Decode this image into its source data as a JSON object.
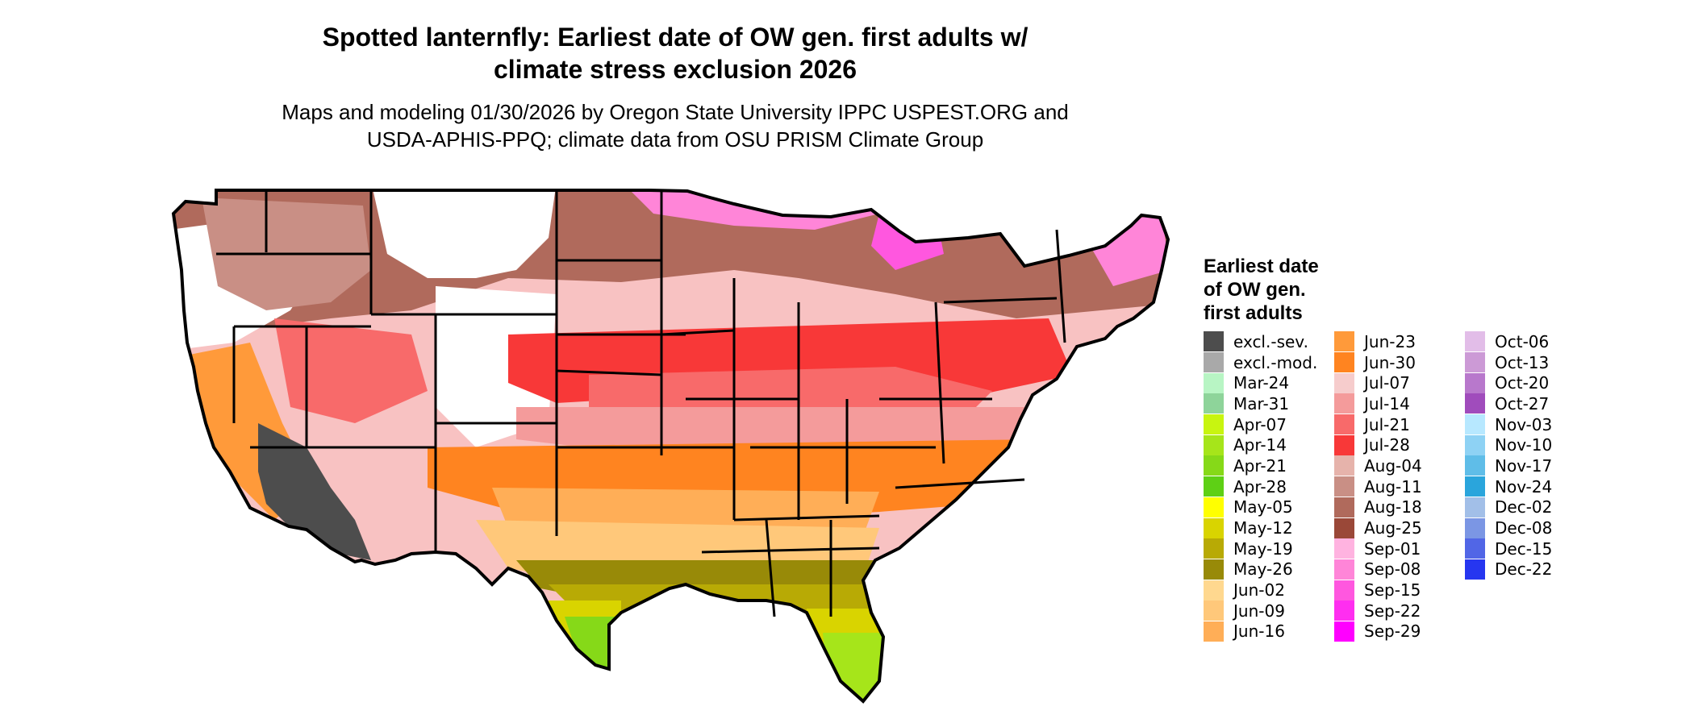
{
  "header": {
    "title_line1": "Spotted lanternfly: Earliest date of OW gen. first adults w/",
    "title_line2": "climate stress exclusion 2026",
    "subtitle_line1": "Maps and modeling 01/30/2026 by Oregon State University IPPC USPEST.ORG and",
    "subtitle_line2": "USDA-APHIS-PPQ; climate data from OSU PRISM Climate Group"
  },
  "legend": {
    "title_line1": "Earliest date",
    "title_line2": "of OW gen.",
    "title_line3": "first adults",
    "columns": [
      [
        {
          "label": "excl.-sev.",
          "color": "#4d4d4d"
        },
        {
          "label": "excl.-mod.",
          "color": "#a9a9a9"
        },
        {
          "label": "Mar-24",
          "color": "#b8f5c4"
        },
        {
          "label": "Mar-31",
          "color": "#8ed49a"
        },
        {
          "label": "Apr-07",
          "color": "#c8f510"
        },
        {
          "label": "Apr-14",
          "color": "#a6e51a"
        },
        {
          "label": "Apr-21",
          "color": "#86d918"
        },
        {
          "label": "Apr-28",
          "color": "#5ed015"
        },
        {
          "label": "May-05",
          "color": "#ffff00"
        },
        {
          "label": "May-12",
          "color": "#d9d400"
        },
        {
          "label": "May-19",
          "color": "#b8aa05"
        },
        {
          "label": "May-26",
          "color": "#988a08"
        },
        {
          "label": "Jun-02",
          "color": "#ffd88f"
        },
        {
          "label": "Jun-09",
          "color": "#ffc87a"
        },
        {
          "label": "Jun-16",
          "color": "#ffae57"
        }
      ],
      [
        {
          "label": "Jun-23",
          "color": "#ff9a3a"
        },
        {
          "label": "Jun-30",
          "color": "#ff8420"
        },
        {
          "label": "Jul-07",
          "color": "#f6cccc"
        },
        {
          "label": "Jul-14",
          "color": "#f49b9b"
        },
        {
          "label": "Jul-21",
          "color": "#f86a6a"
        },
        {
          "label": "Jul-28",
          "color": "#f83838"
        },
        {
          "label": "Aug-04",
          "color": "#e6b3ab"
        },
        {
          "label": "Aug-11",
          "color": "#c98f85"
        },
        {
          "label": "Aug-18",
          "color": "#b06a5c"
        },
        {
          "label": "Aug-25",
          "color": "#9a4838"
        },
        {
          "label": "Sep-01",
          "color": "#ffb3e0"
        },
        {
          "label": "Sep-08",
          "color": "#ff85d8"
        },
        {
          "label": "Sep-15",
          "color": "#ff57df"
        },
        {
          "label": "Sep-22",
          "color": "#ff2ef0"
        },
        {
          "label": "Sep-29",
          "color": "#ff00ff"
        }
      ],
      [
        {
          "label": "Oct-06",
          "color": "#e2bde8"
        },
        {
          "label": "Oct-13",
          "color": "#cc9ad6"
        },
        {
          "label": "Oct-20",
          "color": "#b878cc"
        },
        {
          "label": "Oct-27",
          "color": "#a04cbc"
        },
        {
          "label": "Nov-03",
          "color": "#b7e8ff"
        },
        {
          "label": "Nov-10",
          "color": "#8ed2f4"
        },
        {
          "label": "Nov-17",
          "color": "#5fbde8"
        },
        {
          "label": "Nov-24",
          "color": "#2aa5dc"
        },
        {
          "label": "Dec-02",
          "color": "#a2bfe8"
        },
        {
          "label": "Dec-08",
          "color": "#7b96e4"
        },
        {
          "label": "Dec-15",
          "color": "#5166e6"
        },
        {
          "label": "Dec-22",
          "color": "#2636f0"
        }
      ]
    ]
  }
}
